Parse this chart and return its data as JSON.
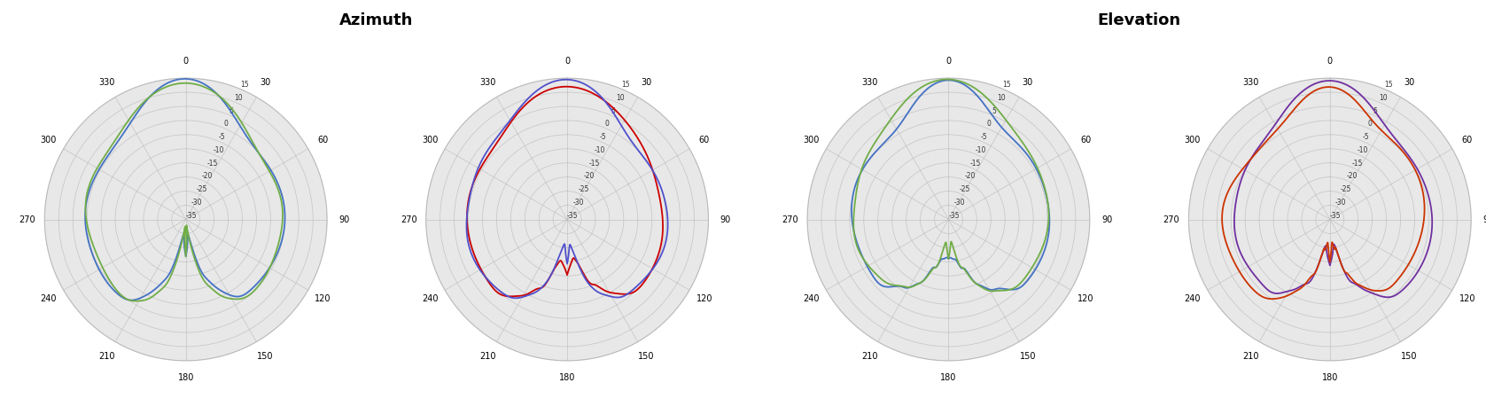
{
  "title_azimuth": "Azimuth",
  "title_elevation": "Elevation",
  "title_fontsize": 13,
  "title_fontweight": "bold",
  "r_min": -35,
  "r_max": 15,
  "r_ticks": [
    15,
    10,
    5,
    0,
    -5,
    -10,
    -15,
    -20,
    -25,
    -30,
    -35
  ],
  "theta_ticks_deg": [
    0,
    30,
    60,
    90,
    120,
    150,
    180,
    210,
    240,
    270,
    300,
    330
  ],
  "colors": {
    "az1_line1": "#4472C4",
    "az1_line2": "#70AD47",
    "az2_line1": "#CC0000",
    "az2_line2": "#5050CC",
    "el1_line1": "#4472C4",
    "el1_line2": "#70AD47",
    "el2_line1": "#7030A0",
    "el2_line2": "#CC3300"
  },
  "background_color": "#e8e8e8",
  "grid_color": "#bbbbbb",
  "line_width": 1.3
}
